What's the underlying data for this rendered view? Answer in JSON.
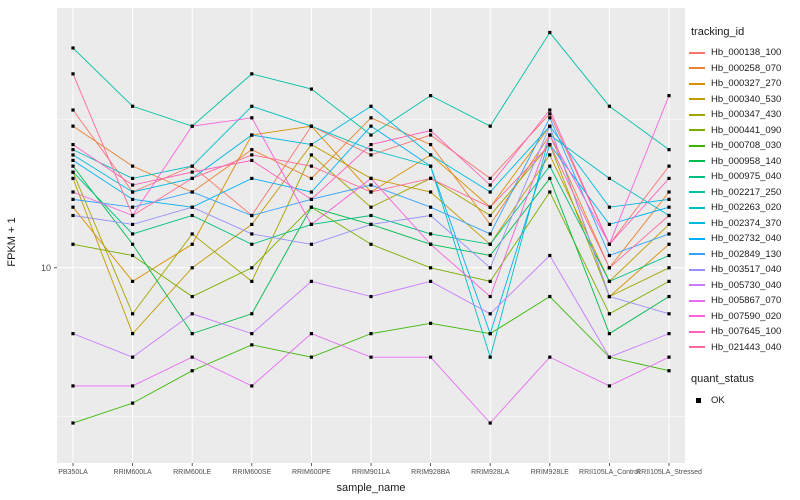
{
  "chart_data": {
    "type": "line",
    "title": "",
    "xlabel": "sample_name",
    "ylabel": "FPKM + 1",
    "y_scale": "log10",
    "ylim": [
      2.2,
      75
    ],
    "y_ticks": [
      {
        "value": 10,
        "label": "10"
      }
    ],
    "y_minor": [
      3.162,
      31.62
    ],
    "panel_bg": "#EBEBEB",
    "grid_color": "#FFFFFF",
    "point_color": "#000000",
    "point_shape": "square",
    "legend_position": "right",
    "categories": [
      "PB350LA",
      "RRIM600LA",
      "RRIM600LE",
      "RRIM600SE",
      "RRIM600PE",
      "RRIM901LA",
      "RRIM928BA",
      "RRIM928LA",
      "RRIM928LE",
      "RRII105LA_Control",
      "RRII105LA_Stressed"
    ],
    "series": [
      {
        "name": "Hb_000138_100",
        "color": "#F8766D",
        "values": [
          34,
          18,
          22,
          15,
          30,
          24,
          28,
          20,
          33,
          12,
          22
        ]
      },
      {
        "name": "Hb_000258_070",
        "color": "#EA8331",
        "values": [
          30,
          22,
          18,
          25,
          20,
          32,
          26,
          14,
          28,
          10,
          18
        ]
      },
      {
        "name": "Hb_000327_270",
        "color": "#D89000",
        "values": [
          16,
          9,
          12,
          28,
          30,
          18,
          24,
          16,
          30,
          8,
          12
        ]
      },
      {
        "name": "Hb_000340_530",
        "color": "#C09B00",
        "values": [
          20,
          6,
          10,
          14,
          26,
          20,
          18,
          12,
          24,
          9,
          14
        ]
      },
      {
        "name": "Hb_000347_430",
        "color": "#A3A500",
        "values": [
          21,
          7,
          13,
          9,
          24,
          16,
          20,
          15,
          26,
          8,
          10
        ]
      },
      {
        "name": "Hb_000441_090",
        "color": "#7CAE00",
        "values": [
          12,
          11,
          8,
          10,
          16,
          12,
          10,
          9,
          18,
          7,
          9
        ]
      },
      {
        "name": "Hb_000708_030",
        "color": "#39B600",
        "values": [
          3,
          3.5,
          4.5,
          5.5,
          5,
          6,
          6.5,
          6,
          8,
          5,
          4.5
        ]
      },
      {
        "name": "Hb_000958_140",
        "color": "#00BB4E",
        "values": [
          22,
          12,
          6,
          7,
          16,
          14,
          12,
          11,
          20,
          6,
          8
        ]
      },
      {
        "name": "Hb_000975_040",
        "color": "#00BF7D",
        "values": [
          21,
          13,
          15,
          12,
          14,
          15,
          13,
          12,
          22,
          9,
          11
        ]
      },
      {
        "name": "Hb_002217_250",
        "color": "#00C1A3",
        "values": [
          55,
          35,
          30,
          45,
          40,
          28,
          38,
          30,
          62,
          35,
          25
        ]
      },
      {
        "name": "Hb_002263_020",
        "color": "#00BFC4",
        "values": [
          25,
          20,
          22,
          35,
          30,
          25,
          22,
          5,
          28,
          20,
          15
        ]
      },
      {
        "name": "Hb_002374_370",
        "color": "#00BAE0",
        "values": [
          24,
          18,
          20,
          28,
          26,
          35,
          24,
          18,
          30,
          16,
          17
        ]
      },
      {
        "name": "Hb_002732_040",
        "color": "#00B0F6",
        "values": [
          23,
          17,
          16,
          20,
          18,
          30,
          22,
          6,
          26,
          14,
          16
        ]
      },
      {
        "name": "Hb_002849_130",
        "color": "#35A2FF",
        "values": [
          17,
          16,
          18,
          15,
          17,
          19,
          16,
          13,
          32,
          11,
          13
        ]
      },
      {
        "name": "Hb_003517_040",
        "color": "#9590FF",
        "values": [
          15,
          14,
          16,
          13,
          12,
          14,
          15,
          10,
          30,
          8,
          7
        ]
      },
      {
        "name": "Hb_005730_040",
        "color": "#C77CFF",
        "values": [
          6,
          5,
          7,
          6,
          9,
          8,
          9,
          7,
          11,
          5,
          6
        ]
      },
      {
        "name": "Hb_005867_070",
        "color": "#E76BF3",
        "values": [
          4,
          4,
          5,
          4,
          6,
          5,
          5,
          3,
          5,
          4,
          5
        ]
      },
      {
        "name": "Hb_007590_020",
        "color": "#FA62DB",
        "values": [
          18,
          15,
          30,
          32,
          14,
          20,
          12,
          8,
          28,
          12,
          38
        ]
      },
      {
        "name": "Hb_007645_100",
        "color": "#FF62BC",
        "values": [
          26,
          19,
          21,
          23,
          17,
          26,
          29,
          19,
          34,
          12,
          20
        ]
      },
      {
        "name": "Hb_021443_040",
        "color": "#FF6A98",
        "values": [
          45,
          15,
          20,
          24,
          22,
          18,
          20,
          16,
          26,
          10,
          15
        ]
      }
    ],
    "legend": {
      "tracking_title": "tracking_id",
      "quant_title": "quant_status",
      "quant_label": "OK",
      "quant_marker_color": "#000000"
    }
  }
}
